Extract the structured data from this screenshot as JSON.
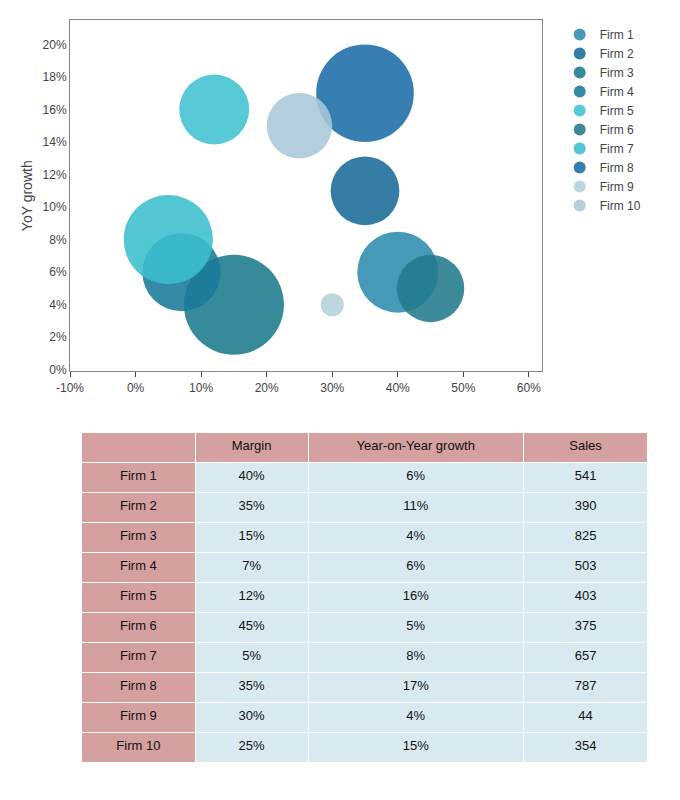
{
  "chart_data": [
    {
      "type": "scatter",
      "ylabel": "YoY growth",
      "xlim": [
        -0.1,
        0.62
      ],
      "ylim": [
        -0.001,
        0.215
      ],
      "xticks": [
        {
          "value": -0.1,
          "label": "-10%"
        },
        {
          "value": 0.0,
          "label": "0%"
        },
        {
          "value": 0.1,
          "label": "10%"
        },
        {
          "value": 0.2,
          "label": "20%"
        },
        {
          "value": 0.3,
          "label": "30%"
        },
        {
          "value": 0.4,
          "label": "40%"
        },
        {
          "value": 0.5,
          "label": "50%"
        },
        {
          "value": 0.6,
          "label": "60%"
        }
      ],
      "yticks": [
        {
          "value": 0.0,
          "label": "0%"
        },
        {
          "value": 0.02,
          "label": "2%"
        },
        {
          "value": 0.04,
          "label": "4%"
        },
        {
          "value": 0.06,
          "label": "6%"
        },
        {
          "value": 0.08,
          "label": "8%"
        },
        {
          "value": 0.1,
          "label": "10%"
        },
        {
          "value": 0.12,
          "label": "12%"
        },
        {
          "value": 0.14,
          "label": "14%"
        },
        {
          "value": 0.16,
          "label": "16%"
        },
        {
          "value": 0.18,
          "label": "18%"
        },
        {
          "value": 0.2,
          "label": "20%"
        }
      ],
      "grid": false,
      "legend": "right",
      "series": [
        {
          "name": "Firm 1",
          "color": "#2E8BAE",
          "x": [
            0.4
          ],
          "values": [
            0.06
          ],
          "sizes": [
            541
          ]
        },
        {
          "name": "Firm 2",
          "color": "#1A6B9A",
          "x": [
            0.35
          ],
          "values": [
            0.11
          ],
          "sizes": [
            390
          ]
        },
        {
          "name": "Firm 3",
          "color": "#1B7A8C",
          "x": [
            0.15
          ],
          "values": [
            0.04
          ],
          "sizes": [
            825
          ]
        },
        {
          "name": "Firm 4",
          "color": "#1A7A9A",
          "x": [
            0.07
          ],
          "values": [
            0.06
          ],
          "sizes": [
            503
          ]
        },
        {
          "name": "Firm 5",
          "color": "#3FC0D0",
          "x": [
            0.12
          ],
          "values": [
            0.16
          ],
          "sizes": [
            403
          ]
        },
        {
          "name": "Firm 6",
          "color": "#217A8C",
          "x": [
            0.45
          ],
          "values": [
            0.05
          ],
          "sizes": [
            375
          ]
        },
        {
          "name": "Firm 7",
          "color": "#3BBECE",
          "x": [
            0.05
          ],
          "values": [
            0.08
          ],
          "sizes": [
            657
          ]
        },
        {
          "name": "Firm 8",
          "color": "#1B6CA8",
          "x": [
            0.35
          ],
          "values": [
            0.17
          ],
          "sizes": [
            787
          ]
        },
        {
          "name": "Firm 9",
          "color": "#B5D0DC",
          "x": [
            0.3
          ],
          "values": [
            0.04
          ],
          "sizes": [
            44
          ]
        },
        {
          "name": "Firm 10",
          "color": "#A8C8D8",
          "x": [
            0.25
          ],
          "values": [
            0.15
          ],
          "sizes": [
            354
          ]
        }
      ]
    },
    {
      "type": "table",
      "color": "#D4A0A0",
      "categories": [
        "Firm 1",
        "Firm 2",
        "Firm 3",
        "Firm 4",
        "Firm 5",
        "Firm 6",
        "Firm 7",
        "Firm 8",
        "Firm 9",
        "Firm 10"
      ],
      "series": [
        {
          "name": "Margin",
          "color": "#D8EAF0",
          "values": [
            0.4,
            0.35,
            0.15,
            0.07,
            0.12,
            0.45,
            0.05,
            0.35,
            0.3,
            0.25
          ],
          "value_labels": [
            "40%",
            "35%",
            "15%",
            "7%",
            "12%",
            "45%",
            "5%",
            "35%",
            "30%",
            "25%"
          ]
        },
        {
          "name": "Year-on-Year growth",
          "color": "#D8EAF0",
          "values": [
            0.06,
            0.11,
            0.04,
            0.06,
            0.16,
            0.05,
            0.08,
            0.17,
            0.04,
            0.15
          ],
          "value_labels": [
            "6%",
            "11%",
            "4%",
            "6%",
            "16%",
            "5%",
            "8%",
            "17%",
            "4%",
            "15%"
          ]
        },
        {
          "name": "Sales",
          "color": "#D8EAF0",
          "values": [
            541,
            390,
            825,
            503,
            403,
            375,
            657,
            787,
            44,
            354
          ]
        }
      ]
    }
  ]
}
